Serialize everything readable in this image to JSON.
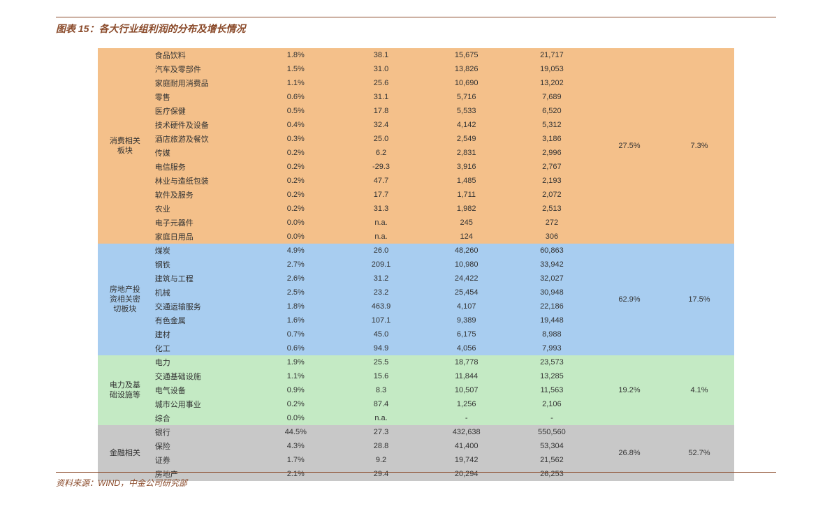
{
  "title": "图表 15：各大行业组利润的分布及增长情况",
  "source": "资料来源：WIND，中金公司研究部",
  "colors": {
    "title": "#8a4a2a",
    "rule": "#8a4a2a",
    "groups": [
      "#f4c08a",
      "#a8cdf0",
      "#c4eac4",
      "#c8c8c8"
    ],
    "text": "#333333",
    "background": "#ffffff"
  },
  "table": {
    "type": "table",
    "font_size": 11,
    "col_align": [
      "center",
      "left",
      "center",
      "center",
      "center",
      "center",
      "center",
      "center"
    ],
    "groups": [
      {
        "category": "消费相关板块",
        "agg": [
          "27.5%",
          "7.3%"
        ],
        "rows": [
          [
            "食品饮料",
            "1.8%",
            "38.1",
            "15,675",
            "21,717"
          ],
          [
            "汽车及零部件",
            "1.5%",
            "31.0",
            "13,826",
            "19,053"
          ],
          [
            "家庭耐用消费品",
            "1.1%",
            "25.6",
            "10,690",
            "13,202"
          ],
          [
            "零售",
            "0.6%",
            "31.1",
            "5,716",
            "7,689"
          ],
          [
            "医疗保健",
            "0.5%",
            "17.8",
            "5,533",
            "6,520"
          ],
          [
            "技术硬件及设备",
            "0.4%",
            "32.4",
            "4,142",
            "5,312"
          ],
          [
            "酒店旅游及餐饮",
            "0.3%",
            "25.0",
            "2,549",
            "3,186"
          ],
          [
            "传媒",
            "0.2%",
            "6.2",
            "2,831",
            "2,996"
          ],
          [
            "电信服务",
            "0.2%",
            "-29.3",
            "3,916",
            "2,767"
          ],
          [
            "林业与造纸包装",
            "0.2%",
            "47.7",
            "1,485",
            "2,193"
          ],
          [
            "软件及服务",
            "0.2%",
            "17.7",
            "1,711",
            "2,072"
          ],
          [
            "农业",
            "0.2%",
            "31.3",
            "1,982",
            "2,513"
          ],
          [
            "电子元器件",
            "0.0%",
            "n.a.",
            "245",
            "272"
          ],
          [
            "家庭日用品",
            "0.0%",
            "n.a.",
            "124",
            "306"
          ]
        ]
      },
      {
        "category": "房地产投资相关密切板块",
        "agg": [
          "62.9%",
          "17.5%"
        ],
        "rows": [
          [
            "煤炭",
            "4.9%",
            "26.0",
            "48,260",
            "60,863"
          ],
          [
            "钢铁",
            "2.7%",
            "209.1",
            "10,980",
            "33,942"
          ],
          [
            "建筑与工程",
            "2.6%",
            "31.2",
            "24,422",
            "32,027"
          ],
          [
            "机械",
            "2.5%",
            "23.2",
            "25,454",
            "30,948"
          ],
          [
            "交通运输服务",
            "1.8%",
            "463.9",
            "4,107",
            "22,186"
          ],
          [
            "有色金属",
            "1.6%",
            "107.1",
            "9,389",
            "19,448"
          ],
          [
            "建材",
            "0.7%",
            "45.0",
            "6,175",
            "8,988"
          ],
          [
            "化工",
            "0.6%",
            "94.9",
            "4,056",
            "7,993"
          ]
        ]
      },
      {
        "category": "电力及基础设施等",
        "agg": [
          "19.2%",
          "4.1%"
        ],
        "rows": [
          [
            "电力",
            "1.9%",
            "25.5",
            "18,778",
            "23,573"
          ],
          [
            "交通基础设施",
            "1.1%",
            "15.6",
            "11,844",
            "13,285"
          ],
          [
            "电气设备",
            "0.9%",
            "8.3",
            "10,507",
            "11,563"
          ],
          [
            "城市公用事业",
            "0.2%",
            "87.4",
            "1,256",
            "2,106"
          ],
          [
            "综合",
            "0.0%",
            "n.a.",
            "-",
            "-"
          ]
        ]
      },
      {
        "category": "金融相关",
        "agg": [
          "26.8%",
          "52.7%"
        ],
        "rows": [
          [
            "银行",
            "44.5%",
            "27.3",
            "432,638",
            "550,560"
          ],
          [
            "保险",
            "4.3%",
            "28.8",
            "41,400",
            "53,304"
          ],
          [
            "证券",
            "1.7%",
            "9.2",
            "19,742",
            "21,562"
          ],
          [
            "房地产",
            "2.1%",
            "29.4",
            "20,294",
            "26,253"
          ]
        ]
      }
    ]
  }
}
